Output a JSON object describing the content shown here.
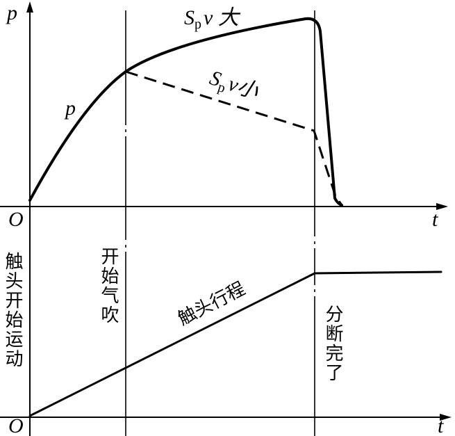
{
  "top_chart": {
    "y_axis_label": "p",
    "origin": "O",
    "x_axis_label": "t",
    "curve_label": "p",
    "high_label": {
      "symbol": "S",
      "subscript": "p",
      "suffix": "v 大"
    },
    "low_label": {
      "symbol": "S",
      "subscript": "p",
      "suffix": "v小"
    }
  },
  "bottom_chart": {
    "origin": "O",
    "x_axis_label": "t",
    "start_label": "触头开始运动",
    "blow_label": "开始气吹",
    "travel_label": "触头行程",
    "end_label": "分断完了"
  }
}
